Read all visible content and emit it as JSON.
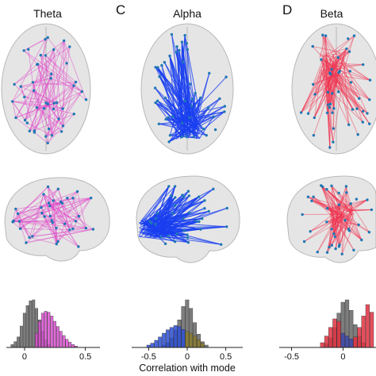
{
  "panels": [
    {
      "letter": "",
      "title": "Theta",
      "edge_color": "#e040c8",
      "node_color": "#1f77b4",
      "histogram": {
        "tick_labels": [
          "0",
          "0.5"
        ],
        "ticks": [
          0,
          0.5
        ],
        "xlim": [
          -0.15,
          0.62
        ],
        "bin_width": 0.025,
        "gray_bins": [
          {
            "x": -0.1,
            "h": 0.06
          },
          {
            "x": -0.075,
            "h": 0.12
          },
          {
            "x": -0.05,
            "h": 0.22
          },
          {
            "x": -0.025,
            "h": 0.45
          },
          {
            "x": 0.0,
            "h": 0.72
          },
          {
            "x": 0.025,
            "h": 0.88
          },
          {
            "x": 0.05,
            "h": 0.98
          },
          {
            "x": 0.075,
            "h": 1.0
          },
          {
            "x": 0.1,
            "h": 0.82
          },
          {
            "x": 0.125,
            "h": 0.58
          },
          {
            "x": 0.15,
            "h": 0.34
          },
          {
            "x": 0.175,
            "h": 0.16
          },
          {
            "x": 0.2,
            "h": 0.07
          }
        ],
        "colored_bins": [
          {
            "x": 0.1,
            "h": 0.3
          },
          {
            "x": 0.125,
            "h": 0.55
          },
          {
            "x": 0.15,
            "h": 0.72
          },
          {
            "x": 0.175,
            "h": 0.76
          },
          {
            "x": 0.2,
            "h": 0.74
          },
          {
            "x": 0.225,
            "h": 0.66
          },
          {
            "x": 0.25,
            "h": 0.55
          },
          {
            "x": 0.275,
            "h": 0.44
          },
          {
            "x": 0.3,
            "h": 0.34
          },
          {
            "x": 0.325,
            "h": 0.25
          },
          {
            "x": 0.35,
            "h": 0.17
          },
          {
            "x": 0.375,
            "h": 0.11
          },
          {
            "x": 0.4,
            "h": 0.06
          },
          {
            "x": 0.425,
            "h": 0.03
          }
        ],
        "colored_fill": "#d94fd0",
        "secondary_fill": "#8a3a7a"
      }
    },
    {
      "letter": "C",
      "title": "Alpha",
      "edge_color": "#1a3ff0",
      "node_color": "#1f77b4",
      "histogram": {
        "tick_labels": [
          "-0.5",
          "0",
          "0.5"
        ],
        "ticks": [
          -0.5,
          0,
          0.5
        ],
        "xlim": [
          -0.72,
          0.72
        ],
        "bin_width": 0.05,
        "gray_bins": [
          {
            "x": -0.3,
            "h": 0.05
          },
          {
            "x": -0.25,
            "h": 0.1
          },
          {
            "x": -0.2,
            "h": 0.2
          },
          {
            "x": -0.15,
            "h": 0.36
          },
          {
            "x": -0.1,
            "h": 0.58
          },
          {
            "x": -0.05,
            "h": 0.86
          },
          {
            "x": 0.0,
            "h": 1.0
          },
          {
            "x": 0.05,
            "h": 0.82
          },
          {
            "x": 0.1,
            "h": 0.52
          },
          {
            "x": 0.15,
            "h": 0.28
          },
          {
            "x": 0.2,
            "h": 0.12
          },
          {
            "x": 0.25,
            "h": 0.05
          }
        ],
        "colored_bins": [
          {
            "x": -0.5,
            "h": 0.05
          },
          {
            "x": -0.45,
            "h": 0.09
          },
          {
            "x": -0.4,
            "h": 0.15
          },
          {
            "x": -0.35,
            "h": 0.22
          },
          {
            "x": -0.3,
            "h": 0.3
          },
          {
            "x": -0.25,
            "h": 0.37
          },
          {
            "x": -0.2,
            "h": 0.42
          },
          {
            "x": -0.15,
            "h": 0.46
          },
          {
            "x": -0.1,
            "h": 0.44
          },
          {
            "x": -0.05,
            "h": 0.38
          }
        ],
        "secondary_bins": [
          {
            "x": 0.0,
            "h": 0.34
          },
          {
            "x": 0.05,
            "h": 0.3
          },
          {
            "x": 0.1,
            "h": 0.24
          },
          {
            "x": 0.15,
            "h": 0.16
          },
          {
            "x": 0.2,
            "h": 0.09
          }
        ],
        "colored_fill": "#2b4fd6",
        "secondary_fill": "#8a7a2a"
      }
    },
    {
      "letter": "D",
      "title": "Beta",
      "edge_color": "#f0304e",
      "node_color": "#1f77b4",
      "histogram": {
        "tick_labels": [
          "-0.5",
          "0"
        ],
        "ticks": [
          -0.5,
          0
        ],
        "xlim": [
          -0.62,
          0.32
        ],
        "bin_width": 0.04,
        "gray_bins": [
          {
            "x": -0.16,
            "h": 0.08
          },
          {
            "x": -0.12,
            "h": 0.2
          },
          {
            "x": -0.08,
            "h": 0.42
          },
          {
            "x": -0.04,
            "h": 0.72
          },
          {
            "x": 0.0,
            "h": 0.95
          },
          {
            "x": 0.04,
            "h": 1.0
          },
          {
            "x": 0.08,
            "h": 0.78
          },
          {
            "x": 0.12,
            "h": 0.48
          },
          {
            "x": 0.16,
            "h": 0.24
          },
          {
            "x": 0.2,
            "h": 0.1
          }
        ],
        "colored_bins": [
          {
            "x": -0.2,
            "h": 0.1
          },
          {
            "x": -0.16,
            "h": 0.24
          },
          {
            "x": -0.12,
            "h": 0.42
          },
          {
            "x": -0.08,
            "h": 0.6
          },
          {
            "x": -0.04,
            "h": 0.55
          },
          {
            "x": 0.12,
            "h": 0.22
          },
          {
            "x": 0.16,
            "h": 0.42
          },
          {
            "x": 0.2,
            "h": 0.66
          },
          {
            "x": 0.24,
            "h": 0.9
          },
          {
            "x": 0.28,
            "h": 0.74
          }
        ],
        "secondary_bins": [
          {
            "x": 0.0,
            "h": 0.3
          },
          {
            "x": 0.04,
            "h": 0.24
          },
          {
            "x": 0.08,
            "h": 0.18
          }
        ],
        "colored_fill": "#e03040",
        "secondary_fill": "#3a44b0"
      }
    }
  ],
  "shared_xlabel": "Correlation with mode",
  "colors": {
    "brain_fill": "#dcdcdc",
    "brain_stroke": "#b8b8b8",
    "gray_bar": "#6f6f6f",
    "axis": "#222222"
  }
}
